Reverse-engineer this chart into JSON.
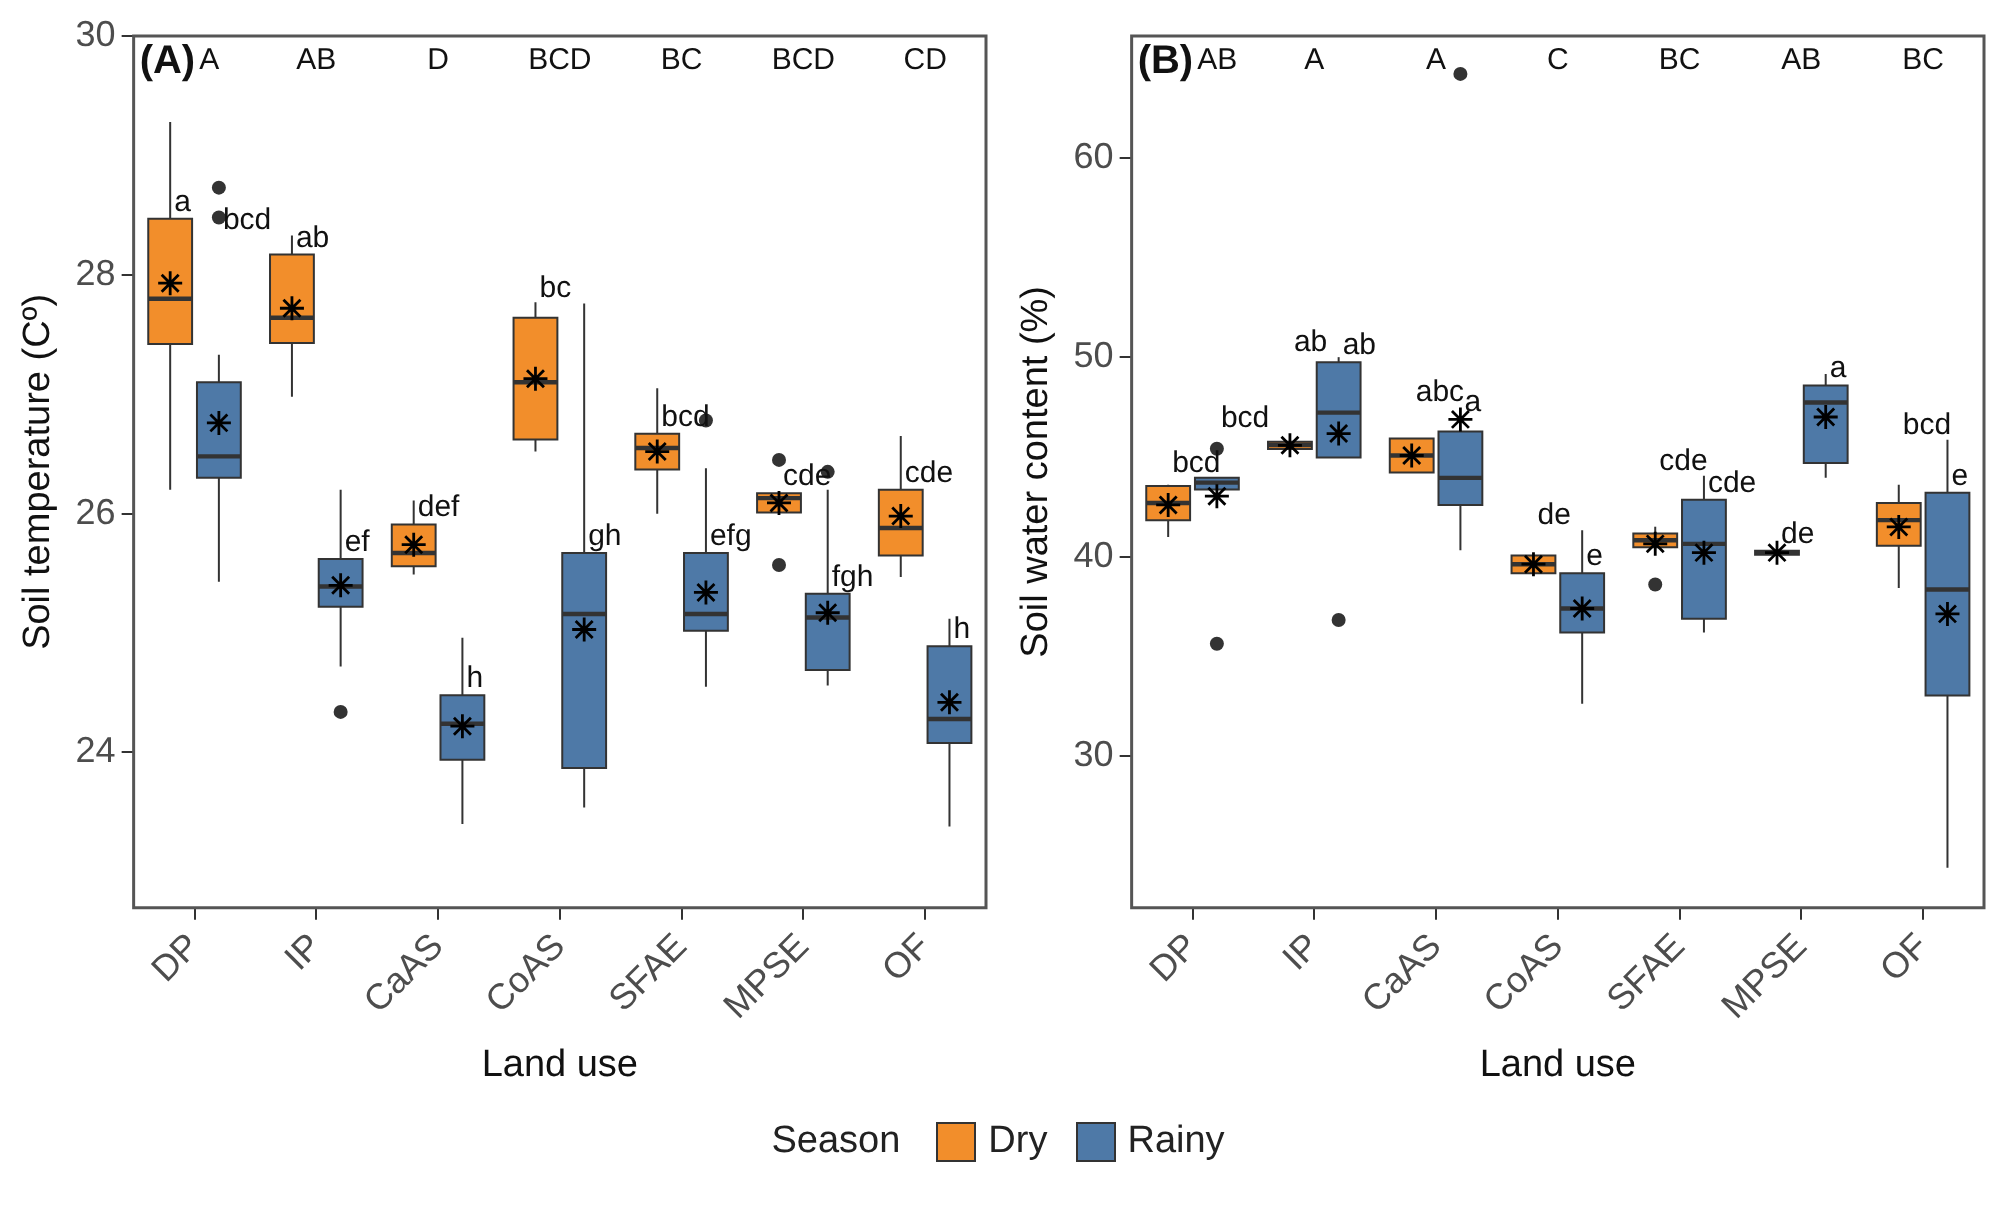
{
  "chart_data": [
    {
      "type": "box",
      "xlabel": "Land use",
      "ylabel": "Soil temperature (Cº)",
      "legend": "bottom",
      "legend_title": "Season",
      "categories": [
        "DP",
        "IP",
        "CaAS",
        "CoAS",
        "SFAE",
        "MPSE",
        "OF"
      ],
      "ylim": [
        22.7,
        30
      ],
      "yticks": [
        24,
        26,
        28,
        30
      ],
      "grid": false,
      "marker": "star",
      "annotations": [
        "(A)",
        "A",
        "AB",
        "D",
        "BCD",
        "BC",
        "BCD",
        "CD"
      ],
      "series": [
        {
          "name": "Dry",
          "color": "#f28e2b",
          "value_labels": [
            "a",
            "ab",
            "def",
            "bc",
            "bcd",
            "cde",
            "cde"
          ],
          "boxes": [
            {
              "low": 26.2,
              "q1": 27.42,
              "median": 27.8,
              "q3": 28.47,
              "high": 29.28,
              "mean": 27.93
            },
            {
              "low": 26.98,
              "q1": 27.43,
              "median": 27.64,
              "q3": 28.17,
              "high": 28.33,
              "mean": 27.72
            },
            {
              "low": 25.49,
              "q1": 25.56,
              "median": 25.67,
              "q3": 25.91,
              "high": 26.11,
              "mean": 25.74
            },
            {
              "low": 26.52,
              "q1": 26.62,
              "median": 27.1,
              "q3": 27.64,
              "high": 27.77,
              "mean": 27.13
            },
            {
              "low": 26.0,
              "q1": 26.37,
              "median": 26.55,
              "q3": 26.67,
              "high": 27.05,
              "mean": 26.52
            },
            {
              "low": 26.01,
              "q1": 26.01,
              "median": 26.13,
              "q3": 26.17,
              "high": 26.17,
              "mean": 26.09,
              "outliers": [
                26.45,
                25.57
              ]
            },
            {
              "low": 25.47,
              "q1": 25.65,
              "median": 25.88,
              "q3": 26.2,
              "high": 26.65,
              "mean": 25.98
            }
          ]
        },
        {
          "name": "Rainy",
          "color": "#4e79a7",
          "value_labels": [
            "bcd",
            "ef",
            "h",
            "gh",
            "efg",
            "fgh",
            "h"
          ],
          "boxes": [
            {
              "low": 25.43,
              "q1": 26.3,
              "median": 26.48,
              "q3": 27.1,
              "high": 27.33,
              "mean": 26.76,
              "outliers": [
                28.73,
                28.48
              ]
            },
            {
              "low": 24.72,
              "q1": 25.22,
              "median": 25.39,
              "q3": 25.62,
              "high": 26.2,
              "mean": 25.4,
              "outliers": [
                24.34
              ]
            },
            {
              "low": 23.4,
              "q1": 23.94,
              "median": 24.24,
              "q3": 24.48,
              "high": 24.96,
              "mean": 24.22
            },
            {
              "low": 23.54,
              "q1": 23.87,
              "median": 25.16,
              "q3": 25.67,
              "high": 27.76,
              "mean": 25.03
            },
            {
              "low": 24.55,
              "q1": 25.02,
              "median": 25.16,
              "q3": 25.67,
              "high": 26.38,
              "mean": 25.34,
              "outliers": [
                26.78
              ]
            },
            {
              "low": 24.56,
              "q1": 24.69,
              "median": 25.13,
              "q3": 25.33,
              "high": 26.2,
              "mean": 25.17,
              "outliers": [
                26.35
              ]
            },
            {
              "low": 23.38,
              "q1": 24.08,
              "median": 24.28,
              "q3": 24.89,
              "high": 25.12,
              "mean": 24.42
            }
          ]
        }
      ]
    },
    {
      "type": "box",
      "xlabel": "Land use",
      "ylabel": "Soil water content (%)",
      "categories": [
        "DP",
        "IP",
        "CaAS",
        "CoAS",
        "SFAE",
        "MPSE",
        "OF"
      ],
      "ylim": [
        22.4,
        66.1
      ],
      "yticks": [
        30,
        40,
        50,
        60
      ],
      "grid": false,
      "marker": "star",
      "annotations": [
        "(B)",
        "AB",
        "A",
        "A",
        "C",
        "BC",
        "AB",
        "BC"
      ],
      "series": [
        {
          "name": "Dry",
          "color": "#f28e2b",
          "value_labels": [
            "bcd",
            "ab",
            "abc",
            "de",
            "cde",
            "de",
            "bcd"
          ],
          "boxes": [
            {
              "low": 40.98,
              "q1": 41.83,
              "median": 42.69,
              "q3": 43.54,
              "high": 43.6,
              "mean": 42.59
            },
            {
              "low": 45.4,
              "q1": 45.4,
              "median": 45.6,
              "q3": 45.76,
              "high": 45.76,
              "mean": 45.58
            },
            {
              "low": 44.22,
              "q1": 44.22,
              "median": 45.07,
              "q3": 45.92,
              "high": 45.92,
              "mean": 45.07
            },
            {
              "low": 39.17,
              "q1": 39.17,
              "median": 39.62,
              "q3": 40.06,
              "high": 40.06,
              "mean": 39.62
            },
            {
              "low": 40.47,
              "q1": 40.47,
              "median": 40.82,
              "q3": 41.16,
              "high": 41.5,
              "mean": 40.64,
              "outliers": [
                38.6
              ]
            },
            {
              "low": 40.1,
              "q1": 40.1,
              "median": 40.2,
              "q3": 40.3,
              "high": 40.3,
              "mean": 40.2
            },
            {
              "low": 38.43,
              "q1": 40.54,
              "median": 41.83,
              "q3": 42.69,
              "high": 43.6,
              "mean": 41.49
            }
          ]
        },
        {
          "name": "Rainy",
          "color": "#4e79a7",
          "value_labels": [
            "bcd",
            "ab",
            "a",
            "e",
            "cde",
            "a",
            "e"
          ],
          "boxes": [
            {
              "low": 43.36,
              "q1": 43.36,
              "median": 43.71,
              "q3": 43.95,
              "high": 43.95,
              "mean": 43.03,
              "outliers": [
                45.41,
                35.63
              ]
            },
            {
              "low": 44.97,
              "q1": 44.97,
              "median": 47.22,
              "q3": 49.74,
              "high": 50.0,
              "mean": 46.17,
              "outliers": [
                36.82
              ]
            },
            {
              "low": 40.32,
              "q1": 42.59,
              "median": 43.95,
              "q3": 46.27,
              "high": 46.27,
              "mean": 46.88,
              "outliers": [
                64.2
              ]
            },
            {
              "low": 32.63,
              "q1": 36.2,
              "median": 37.4,
              "q3": 39.17,
              "high": 41.32,
              "mean": 37.4
            },
            {
              "low": 36.2,
              "q1": 36.89,
              "median": 40.64,
              "q3": 42.85,
              "high": 44.05,
              "mean": 40.2
            },
            {
              "low": 43.95,
              "q1": 44.7,
              "median": 47.73,
              "q3": 48.58,
              "high": 49.16,
              "mean": 47.0
            },
            {
              "low": 24.4,
              "q1": 33.04,
              "median": 38.35,
              "q3": 43.2,
              "high": 45.86,
              "mean": 37.13
            }
          ]
        }
      ]
    }
  ]
}
